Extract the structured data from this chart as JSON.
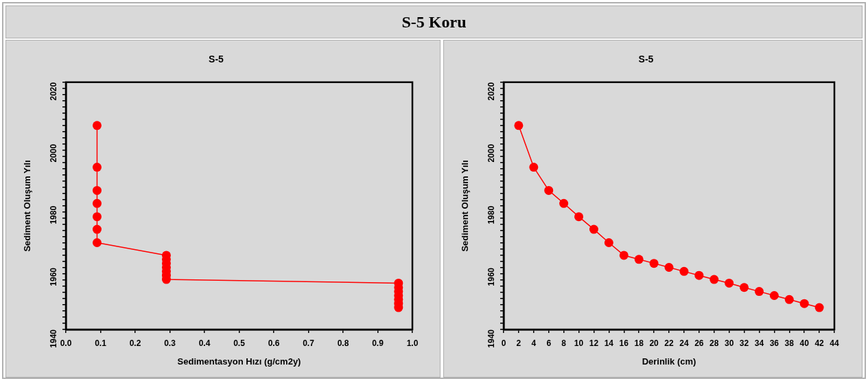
{
  "chart_data": [
    {
      "type": "line",
      "title": "S-5",
      "xlabel": "Sedimentasyon Hızı (g/cm2y)",
      "ylabel": "Sediment Oluşum Yılı",
      "annotations": [
        "S-5 Koru"
      ],
      "marker": "circle",
      "grid": false,
      "line_style": "solid",
      "x": [
        0.09,
        0.09,
        0.09,
        0.09,
        0.09,
        0.09,
        0.09,
        0.29,
        0.29,
        0.29,
        0.29,
        0.29,
        0.29,
        0.29,
        0.96,
        0.96,
        0.96,
        0.96,
        0.96,
        0.96,
        0.96
      ],
      "series": [
        {
          "color": "#ff0000",
          "values": [
            2006,
            1992.5,
            1985,
            1980.8,
            1976.5,
            1972.4,
            1968.1,
            1964,
            1962.7,
            1961.4,
            1960.1,
            1958.8,
            1957.5,
            1956.2,
            1955,
            1953.6,
            1952.3,
            1951,
            1949.7,
            1948.4,
            1947.1
          ]
        }
      ],
      "xlim": [
        0,
        1
      ],
      "xticks": [
        {
          "value": 0,
          "label": "0.0"
        },
        {
          "value": 0.1,
          "label": "0.1"
        },
        {
          "value": 0.2,
          "label": "0.2"
        },
        {
          "value": 0.3,
          "label": "0.3"
        },
        {
          "value": 0.4,
          "label": "0.4"
        },
        {
          "value": 0.5,
          "label": "0.5"
        },
        {
          "value": 0.6,
          "label": "0.6"
        },
        {
          "value": 0.7,
          "label": "0.7"
        },
        {
          "value": 0.8,
          "label": "0.8"
        },
        {
          "value": 0.9,
          "label": "0.9"
        },
        {
          "value": 1,
          "label": "1.0"
        }
      ],
      "ylim": [
        1940,
        2020
      ],
      "yticks": [
        1940,
        {
          "value": 1942,
          "label": null
        },
        {
          "value": 1944,
          "label": null
        },
        {
          "value": 1946,
          "label": null
        },
        {
          "value": 1948,
          "label": null
        },
        {
          "value": 1950,
          "label": null
        },
        {
          "value": 1952,
          "label": null
        },
        {
          "value": 1954,
          "label": null
        },
        {
          "value": 1956,
          "label": null
        },
        {
          "value": 1958,
          "label": null
        },
        1960,
        {
          "value": 1962,
          "label": null
        },
        {
          "value": 1964,
          "label": null
        },
        {
          "value": 1966,
          "label": null
        },
        {
          "value": 1968,
          "label": null
        },
        {
          "value": 1970,
          "label": null
        },
        {
          "value": 1972,
          "label": null
        },
        {
          "value": 1974,
          "label": null
        },
        {
          "value": 1976,
          "label": null
        },
        {
          "value": 1978,
          "label": null
        },
        1980,
        {
          "value": 1982,
          "label": null
        },
        {
          "value": 1984,
          "label": null
        },
        {
          "value": 1986,
          "label": null
        },
        {
          "value": 1988,
          "label": null
        },
        {
          "value": 1990,
          "label": null
        },
        {
          "value": 1992,
          "label": null
        },
        {
          "value": 1994,
          "label": null
        },
        {
          "value": 1996,
          "label": null
        },
        {
          "value": 1998,
          "label": null
        },
        2000,
        {
          "value": 2002,
          "label": null
        },
        {
          "value": 2004,
          "label": null
        },
        {
          "value": 2006,
          "label": null
        },
        {
          "value": 2008,
          "label": null
        },
        {
          "value": 2010,
          "label": null
        },
        {
          "value": 2012,
          "label": null
        },
        {
          "value": 2014,
          "label": null
        },
        {
          "value": 2016,
          "label": null
        },
        {
          "value": 2018,
          "label": null
        },
        2020
      ]
    },
    {
      "type": "line",
      "title": "S-5",
      "xlabel": "Derinlik (cm)",
      "ylabel": "Sediment Oluşum Yılı",
      "marker": "circle",
      "grid": false,
      "line_style": "solid",
      "x": [
        2,
        4,
        6,
        8,
        10,
        12,
        14,
        16,
        18,
        20,
        22,
        24,
        26,
        28,
        30,
        32,
        34,
        36,
        38,
        40,
        42
      ],
      "series": [
        {
          "color": "#ff0000",
          "values": [
            2006,
            1992.5,
            1985,
            1980.8,
            1976.5,
            1972.4,
            1968.1,
            1964,
            1962.7,
            1961.4,
            1960.1,
            1958.8,
            1957.5,
            1956.2,
            1955,
            1953.6,
            1952.3,
            1951,
            1949.7,
            1948.4,
            1947.1
          ]
        }
      ],
      "xlim": [
        0,
        44
      ],
      "xticks": [
        0,
        2,
        4,
        6,
        8,
        10,
        12,
        14,
        16,
        18,
        20,
        22,
        24,
        26,
        28,
        30,
        32,
        34,
        36,
        38,
        40,
        42,
        44
      ],
      "ylim": [
        1940,
        2020
      ],
      "yticks": [
        1940,
        {
          "value": 1942,
          "label": null
        },
        {
          "value": 1944,
          "label": null
        },
        {
          "value": 1946,
          "label": null
        },
        {
          "value": 1948,
          "label": null
        },
        {
          "value": 1950,
          "label": null
        },
        {
          "value": 1952,
          "label": null
        },
        {
          "value": 1954,
          "label": null
        },
        {
          "value": 1956,
          "label": null
        },
        {
          "value": 1958,
          "label": null
        },
        1960,
        {
          "value": 1962,
          "label": null
        },
        {
          "value": 1964,
          "label": null
        },
        {
          "value": 1966,
          "label": null
        },
        {
          "value": 1968,
          "label": null
        },
        {
          "value": 1970,
          "label": null
        },
        {
          "value": 1972,
          "label": null
        },
        {
          "value": 1974,
          "label": null
        },
        {
          "value": 1976,
          "label": null
        },
        {
          "value": 1978,
          "label": null
        },
        1980,
        {
          "value": 1982,
          "label": null
        },
        {
          "value": 1984,
          "label": null
        },
        {
          "value": 1986,
          "label": null
        },
        {
          "value": 1988,
          "label": null
        },
        {
          "value": 1990,
          "label": null
        },
        {
          "value": 1992,
          "label": null
        },
        {
          "value": 1994,
          "label": null
        },
        {
          "value": 1996,
          "label": null
        },
        {
          "value": 1998,
          "label": null
        },
        2000,
        {
          "value": 2002,
          "label": null
        },
        {
          "value": 2004,
          "label": null
        },
        {
          "value": 2006,
          "label": null
        },
        {
          "value": 2008,
          "label": null
        },
        {
          "value": 2010,
          "label": null
        },
        {
          "value": 2012,
          "label": null
        },
        {
          "value": 2014,
          "label": null
        },
        {
          "value": 2016,
          "label": null
        },
        {
          "value": 2018,
          "label": null
        },
        2020
      ]
    }
  ]
}
